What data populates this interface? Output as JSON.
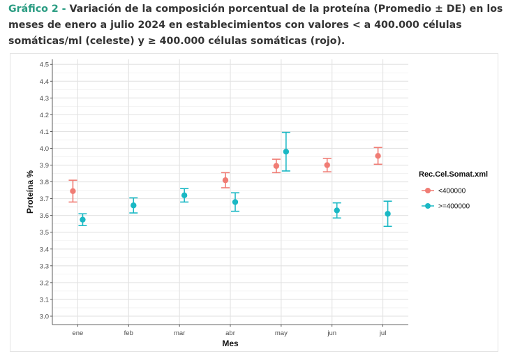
{
  "caption": {
    "lead": "Gráfico 2 -",
    "text": " Variación de la composición porcentual de la proteína (Promedio ± DE) en los meses de enero a julio 2024 en establecimientos con valores < a 400.000 células somáticas/ml (celeste) y ≥ 400.000 células somáticas (rojo)."
  },
  "chart_data": {
    "type": "scatter",
    "title": "",
    "xlabel": "Mes",
    "ylabel": "Proteína %",
    "categories": [
      "ene",
      "feb",
      "mar",
      "abr",
      "may",
      "jun",
      "jul"
    ],
    "ylim": [
      2.95,
      4.53
    ],
    "yticks": [
      3.0,
      3.1,
      3.2,
      3.3,
      3.4,
      3.5,
      3.6,
      3.7,
      3.8,
      3.9,
      4.0,
      4.1,
      4.2,
      4.3,
      4.4,
      4.5
    ],
    "ytick_labels": [
      "3.0",
      "3.1",
      "3.2",
      "3.3",
      "3.4",
      "3.5",
      "3.6",
      "3.7",
      "3.8",
      "3.9",
      "4.0",
      "4.1",
      "4.2",
      "4.3",
      "4.4",
      "4.5"
    ],
    "grid": true,
    "legend": {
      "title": "Rec.Cel.Somat.xml",
      "placement": "right"
    },
    "series": [
      {
        "name": "<400000",
        "color": "#f07c74",
        "points": [
          {
            "x": "ene",
            "y": 3.745,
            "lo": 3.68,
            "hi": 3.81
          },
          {
            "x": "abr",
            "y": 3.81,
            "lo": 3.765,
            "hi": 3.855
          },
          {
            "x": "may",
            "y": 3.895,
            "lo": 3.855,
            "hi": 3.935
          },
          {
            "x": "jun",
            "y": 3.9,
            "lo": 3.86,
            "hi": 3.94
          },
          {
            "x": "jul",
            "y": 3.955,
            "lo": 3.905,
            "hi": 4.005
          }
        ]
      },
      {
        "name": ">=400000",
        "color": "#1ab8c4",
        "points": [
          {
            "x": "ene",
            "y": 3.575,
            "lo": 3.54,
            "hi": 3.61
          },
          {
            "x": "feb",
            "y": 3.66,
            "lo": 3.615,
            "hi": 3.705
          },
          {
            "x": "mar",
            "y": 3.72,
            "lo": 3.68,
            "hi": 3.76
          },
          {
            "x": "abr",
            "y": 3.68,
            "lo": 3.625,
            "hi": 3.735
          },
          {
            "x": "may",
            "y": 3.98,
            "lo": 3.865,
            "hi": 4.095
          },
          {
            "x": "jun",
            "y": 3.63,
            "lo": 3.585,
            "hi": 3.675
          },
          {
            "x": "jul",
            "y": 3.61,
            "lo": 3.535,
            "hi": 3.685
          }
        ]
      }
    ]
  }
}
